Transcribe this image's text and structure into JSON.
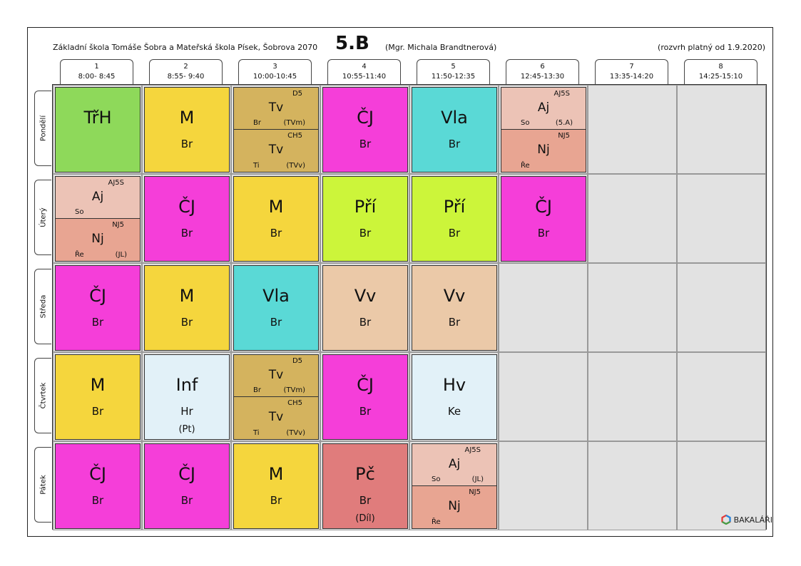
{
  "header": {
    "school": "Základní škola Tomáše Šobra a Mateřská škola Písek, Šobrova 2070",
    "class": "5.B",
    "teacher": "(Mgr. Michala Brandtnerová)",
    "valid": "(rozvrh platný od 1.9.2020)"
  },
  "periods": [
    {
      "num": "1",
      "time": "8:00- 8:45"
    },
    {
      "num": "2",
      "time": "8:55- 9:40"
    },
    {
      "num": "3",
      "time": "10:00-10:45"
    },
    {
      "num": "4",
      "time": "10:55-11:40"
    },
    {
      "num": "5",
      "time": "11:50-12:35"
    },
    {
      "num": "6",
      "time": "12:45-13:30"
    },
    {
      "num": "7",
      "time": "13:35-14:20"
    },
    {
      "num": "8",
      "time": "14:25-15:10"
    }
  ],
  "days": [
    {
      "name": "Pondělí",
      "lessons": [
        {
          "type": "full",
          "subject": "TřH",
          "teacher": "",
          "room": "",
          "color": "#8ed95a"
        },
        {
          "type": "full",
          "subject": "M",
          "teacher": "Br",
          "room": "",
          "color": "#f5d63d"
        },
        {
          "type": "split",
          "top": {
            "group": "D5",
            "subject": "Tv",
            "teacher": "Br",
            "room": "(TVm)",
            "color": "#d4b35e"
          },
          "bottom": {
            "group": "CH5",
            "subject": "Tv",
            "teacher": "Ti",
            "room": "(TVv)",
            "color": "#d4b35e"
          }
        },
        {
          "type": "full",
          "subject": "ČJ",
          "teacher": "Br",
          "room": "",
          "color": "#f53ed9"
        },
        {
          "type": "full",
          "subject": "Vla",
          "teacher": "Br",
          "room": "",
          "color": "#5ad9d6"
        },
        {
          "type": "split",
          "top": {
            "group": "AJ5S",
            "subject": "Aj",
            "teacher": "So",
            "room": "(5.A)",
            "color": "#ecc3b6"
          },
          "bottom": {
            "group": "NJ5",
            "subject": "Nj",
            "teacher": "Ře",
            "room": "",
            "color": "#e8a592"
          }
        },
        null,
        null
      ]
    },
    {
      "name": "Úterý",
      "lessons": [
        {
          "type": "split",
          "top": {
            "group": "AJ5S",
            "subject": "Aj",
            "teacher": "So",
            "room": "",
            "color": "#ecc3b6"
          },
          "bottom": {
            "group": "NJ5",
            "subject": "Nj",
            "teacher": "Ře",
            "room": "(JL)",
            "color": "#e8a592"
          }
        },
        {
          "type": "full",
          "subject": "ČJ",
          "teacher": "Br",
          "room": "",
          "color": "#f53ed9"
        },
        {
          "type": "full",
          "subject": "M",
          "teacher": "Br",
          "room": "",
          "color": "#f5d63d"
        },
        {
          "type": "full",
          "subject": "Pří",
          "teacher": "Br",
          "room": "",
          "color": "#ccf53a"
        },
        {
          "type": "full",
          "subject": "Pří",
          "teacher": "Br",
          "room": "",
          "color": "#ccf53a"
        },
        {
          "type": "full",
          "subject": "ČJ",
          "teacher": "Br",
          "room": "",
          "color": "#f53ed9"
        },
        null,
        null
      ]
    },
    {
      "name": "Středa",
      "lessons": [
        {
          "type": "full",
          "subject": "ČJ",
          "teacher": "Br",
          "room": "",
          "color": "#f53ed9"
        },
        {
          "type": "full",
          "subject": "M",
          "teacher": "Br",
          "room": "",
          "color": "#f5d63d"
        },
        {
          "type": "full",
          "subject": "Vla",
          "teacher": "Br",
          "room": "",
          "color": "#5ad9d6"
        },
        {
          "type": "full",
          "subject": "Vv",
          "teacher": "Br",
          "room": "",
          "color": "#ebc9a8"
        },
        {
          "type": "full",
          "subject": "Vv",
          "teacher": "Br",
          "room": "",
          "color": "#ebc9a8"
        },
        null,
        null,
        null
      ]
    },
    {
      "name": "Čtvrtek",
      "lessons": [
        {
          "type": "full",
          "subject": "M",
          "teacher": "Br",
          "room": "",
          "color": "#f5d63d"
        },
        {
          "type": "full",
          "subject": "Inf",
          "teacher": "Hr",
          "room": "(Pt)",
          "color": "#e2f1f8"
        },
        {
          "type": "split",
          "top": {
            "group": "D5",
            "subject": "Tv",
            "teacher": "Br",
            "room": "(TVm)",
            "color": "#d4b35e"
          },
          "bottom": {
            "group": "CH5",
            "subject": "Tv",
            "teacher": "Ti",
            "room": "(TVv)",
            "color": "#d4b35e"
          }
        },
        {
          "type": "full",
          "subject": "ČJ",
          "teacher": "Br",
          "room": "",
          "color": "#f53ed9"
        },
        {
          "type": "full",
          "subject": "Hv",
          "teacher": "Ke",
          "room": "",
          "color": "#e2f1f8"
        },
        null,
        null,
        null
      ]
    },
    {
      "name": "Pátek",
      "lessons": [
        {
          "type": "full",
          "subject": "ČJ",
          "teacher": "Br",
          "room": "",
          "color": "#f53ed9"
        },
        {
          "type": "full",
          "subject": "ČJ",
          "teacher": "Br",
          "room": "",
          "color": "#f53ed9"
        },
        {
          "type": "full",
          "subject": "M",
          "teacher": "Br",
          "room": "",
          "color": "#f5d63d"
        },
        {
          "type": "full",
          "subject": "Pč",
          "teacher": "Br",
          "room": "(Díl)",
          "color": "#e07c7c"
        },
        {
          "type": "split",
          "top": {
            "group": "AJ5S",
            "subject": "Aj",
            "teacher": "So",
            "room": "(JL)",
            "color": "#ecc3b6"
          },
          "bottom": {
            "group": "NJ5",
            "subject": "Nj",
            "teacher": "Ře",
            "room": "",
            "color": "#e8a592"
          }
        },
        null,
        null,
        null
      ]
    }
  ],
  "logo": {
    "text": "BAKALÁŘI",
    "icon": "bakalari-logo-icon"
  }
}
